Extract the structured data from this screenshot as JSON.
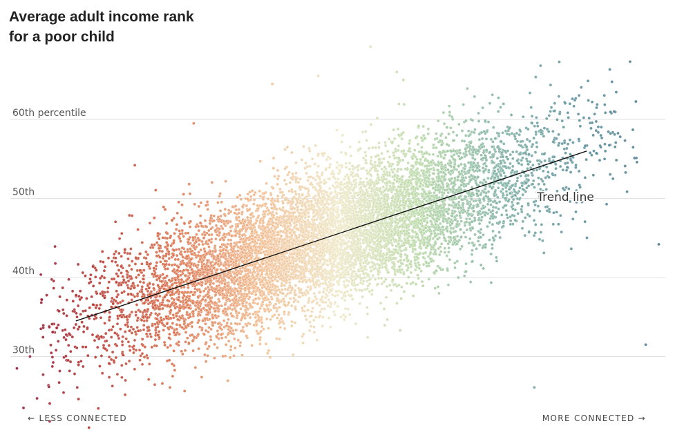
{
  "title_line1": "Average adult income rank",
  "title_line2": "for a poor child",
  "left_direction": "← LESS CONNECTED",
  "right_direction": "MORE CONNECTED →",
  "chart_data": {
    "type": "scatter",
    "title": "Average adult income rank for a poor child",
    "xlabel": "",
    "ylabel": "",
    "ylim": [
      22.5,
      65
    ],
    "xlim": [
      0,
      100
    ],
    "grid": true,
    "y_ticks": [
      {
        "value": 30,
        "label": "30th"
      },
      {
        "value": 40,
        "label": "40th"
      },
      {
        "value": 50,
        "label": "50th"
      },
      {
        "value": 60,
        "label": "60th percentile"
      }
    ],
    "x_direction_labels": [
      "← LESS CONNECTED",
      "MORE CONNECTED →"
    ],
    "trend_line": {
      "label": "Trend line",
      "x": [
        10,
        88
      ],
      "y": [
        34.5,
        56
      ]
    },
    "color_scale": [
      "#8c1538",
      "#b3332f",
      "#d9704a",
      "#f0b98c",
      "#eee7c6",
      "#b8d8a6",
      "#7fb0a4",
      "#5a8e9a",
      "#4a7689"
    ],
    "distribution": {
      "point_count": 9000,
      "x_mean": 48,
      "x_sd": 17,
      "y_intercept": 31.7,
      "y_slope": 0.275,
      "y_sd": 4.2
    },
    "outlier_points": [
      [
        2,
        23.5
      ],
      [
        6,
        21.8
      ],
      [
        12,
        21.0
      ],
      [
        19,
        54.2
      ],
      [
        28,
        59.5
      ],
      [
        37,
        40.3
      ],
      [
        40,
        64.5
      ],
      [
        47,
        65.5
      ],
      [
        55,
        69.2
      ],
      [
        59,
        66.0
      ],
      [
        60,
        65.0
      ],
      [
        66,
        41.0
      ],
      [
        80,
        26.1
      ],
      [
        92,
        52.5
      ],
      [
        99,
        44.2
      ],
      [
        97,
        31.5
      ],
      [
        89,
        58.0
      ],
      [
        1,
        28.5
      ],
      [
        3,
        30.0
      ]
    ]
  }
}
